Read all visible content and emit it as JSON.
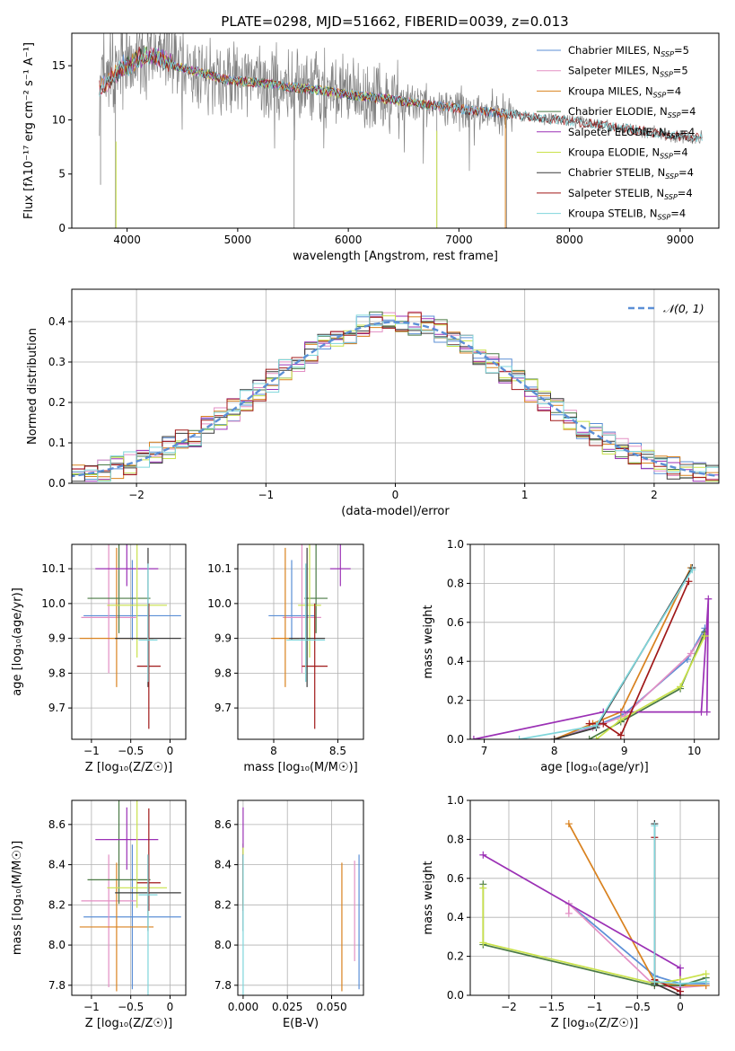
{
  "figure_title": "PLATE=0298, MJD=51662, FIBERID=0039, z=0.013",
  "colors": {
    "chabrier_miles": "#5b8fd6",
    "salpeter_miles": "#e38fc4",
    "kroupa_miles": "#d9821f",
    "chabrier_elodie": "#4a7a45",
    "salpeter_elodie": "#9b30b5",
    "kroupa_elodie": "#c9e24a",
    "chabrier_stelib": "#3a3a3a",
    "salpeter_stelib": "#a01818",
    "kroupa_stelib": "#7fd6db",
    "gaussian": "#5b8fd6",
    "observed_spectrum": "#808080"
  },
  "chart_data": [
    {
      "id": "spectrum",
      "type": "line",
      "xlabel": "wavelength [Angstrom, rest frame]",
      "ylabel": "Flux [fλ10⁻¹⁷ erg cm⁻² s⁻¹ A⁻¹]",
      "xlim": [
        3500,
        9350
      ],
      "ylim": [
        0,
        18
      ],
      "xticks": [
        4000,
        5000,
        6000,
        7000,
        8000,
        9000
      ],
      "yticks": [
        0,
        5,
        10,
        15
      ],
      "grid": false,
      "legend_position": "top-right",
      "series": [
        {
          "key": "chabrier_miles",
          "name": "Chabrier MILES, N",
          "sub": "SSP",
          "suffix": "=5",
          "range": [
            3750,
            7420
          ]
        },
        {
          "key": "salpeter_miles",
          "name": "Salpeter MILES, N",
          "sub": "SSP",
          "suffix": "=5",
          "range": [
            3750,
            7420
          ]
        },
        {
          "key": "kroupa_miles",
          "name": "Kroupa MILES, N",
          "sub": "SSP",
          "suffix": "=4",
          "range": [
            3750,
            7420
          ]
        },
        {
          "key": "chabrier_elodie",
          "name": "Chabrier ELODIE, N",
          "sub": "SSP",
          "suffix": "=4",
          "range": [
            3900,
            6800
          ]
        },
        {
          "key": "salpeter_elodie",
          "name": "Salpeter ELODIE, N",
          "sub": "SSP",
          "suffix": "=4",
          "range": [
            3900,
            6800
          ]
        },
        {
          "key": "kroupa_elodie",
          "name": "Kroupa ELODIE, N",
          "sub": "SSP",
          "suffix": "=4",
          "range": [
            3900,
            6800
          ]
        },
        {
          "key": "chabrier_stelib",
          "name": "Chabrier STELIB, N",
          "sub": "SSP",
          "suffix": "=4",
          "range": [
            3750,
            9200
          ]
        },
        {
          "key": "salpeter_stelib",
          "name": "Salpeter STELIB, N",
          "sub": "SSP",
          "suffix": "=4",
          "range": [
            3750,
            9200
          ]
        },
        {
          "key": "kroupa_stelib",
          "name": "Kroupa STELIB, N",
          "sub": "SSP",
          "suffix": "=4",
          "range": [
            3750,
            9200
          ]
        }
      ],
      "continuum": {
        "x": [
          3750,
          3850,
          3950,
          4050,
          4150,
          4300,
          4500,
          4700,
          4900,
          5100,
          5300,
          5500,
          5700,
          5900,
          6100,
          6300,
          6500,
          6700,
          6900,
          7100,
          7300,
          7500,
          7700,
          7900,
          8100,
          8300,
          8500,
          8700,
          8900,
          9100,
          9200
        ],
        "y": [
          12.5,
          13.5,
          14.5,
          15.0,
          15.6,
          15.4,
          14.8,
          14.3,
          13.7,
          13.5,
          13.3,
          13.0,
          12.8,
          12.5,
          12.2,
          12.0,
          11.7,
          11.4,
          11.2,
          10.9,
          10.7,
          10.5,
          10.2,
          10.0,
          9.8,
          9.5,
          9.2,
          8.9,
          8.6,
          8.4,
          8.3
        ]
      }
    },
    {
      "id": "residuals",
      "type": "bar",
      "xlabel": "(data-model)/error",
      "ylabel": "Normed distribution",
      "xlim": [
        -2.5,
        2.5
      ],
      "ylim": [
        0,
        0.48
      ],
      "xticks": [
        -2,
        -1,
        0,
        1,
        2
      ],
      "yticks": [
        0.0,
        0.1,
        0.2,
        0.3,
        0.4
      ],
      "grid": true,
      "legend_position": "top-right",
      "legend_label": "𝒩(0, 1)",
      "bin_width": 0.1,
      "bin_start": -2.6
    },
    {
      "id": "age_vs_Z",
      "type": "scatter",
      "xlabel": "Z [log₁₀(Z/Z☉)]",
      "ylabel": "age  [log₁₀(age/yr)]",
      "xlim": [
        -1.25,
        0.2
      ],
      "ylim": [
        9.61,
        10.17
      ],
      "xticks": [
        -1.0,
        -0.5,
        0.0
      ],
      "yticks": [
        9.7,
        9.8,
        9.9,
        10.0,
        10.1
      ],
      "grid": true,
      "points": [
        {
          "key": "chabrier_miles",
          "x": -0.48,
          "xerr": 0.62,
          "y": 9.965,
          "yerr": [
            0.07,
            0.16
          ]
        },
        {
          "key": "salpeter_miles",
          "x": -0.78,
          "xerr": 0.35,
          "y": 9.96,
          "yerr": [
            0.16,
            0.22
          ]
        },
        {
          "key": "kroupa_miles",
          "x": -0.68,
          "xerr": 0.47,
          "y": 9.9,
          "yerr": [
            0.14,
            0.26
          ]
        },
        {
          "key": "chabrier_elodie",
          "x": -0.65,
          "xerr": 0.4,
          "y": 10.015,
          "yerr": [
            0.1,
            0.37
          ]
        },
        {
          "key": "salpeter_elodie",
          "x": -0.55,
          "xerr": 0.4,
          "y": 10.1,
          "yerr": [
            0.05,
            0.45
          ]
        },
        {
          "key": "kroupa_elodie",
          "x": -0.42,
          "xerr": 0.38,
          "y": 9.995,
          "yerr": [
            0.15,
            0.35
          ]
        },
        {
          "key": "chabrier_stelib",
          "x": -0.28,
          "xerr": 0.42,
          "y": 9.9,
          "yerr": [
            0.14,
            0.26
          ]
        },
        {
          "key": "salpeter_stelib",
          "x": -0.27,
          "xerr": 0.15,
          "y": 9.82,
          "yerr": [
            0.18,
            0.18
          ]
        },
        {
          "key": "kroupa_stelib",
          "x": -0.28,
          "xerr": 0.12,
          "y": 9.895,
          "yerr": [
            0.12,
            0.22
          ]
        }
      ]
    },
    {
      "id": "age_vs_mass",
      "type": "scatter",
      "xlabel": "mass [log₁₀(M/M☉)]",
      "ylabel": "",
      "xlim": [
        7.72,
        8.7
      ],
      "ylim": [
        9.61,
        10.17
      ],
      "xticks": [
        8.0,
        8.5
      ],
      "yticks": [
        9.7,
        9.8,
        9.9,
        10.0,
        10.1
      ],
      "grid": true,
      "points": [
        {
          "key": "chabrier_miles",
          "x": 8.14,
          "xerr": 0.36,
          "y": 9.965,
          "yerr": [
            0.07,
            0.16
          ]
        },
        {
          "key": "salpeter_miles",
          "x": 8.22,
          "xerr": 0.3,
          "y": 9.96,
          "yerr": [
            0.16,
            0.22
          ]
        },
        {
          "key": "kroupa_miles",
          "x": 8.09,
          "xerr": 0.22,
          "y": 9.9,
          "yerr": [
            0.14,
            0.26
          ]
        },
        {
          "key": "chabrier_elodie",
          "x": 8.33,
          "xerr": 0.18,
          "y": 10.015,
          "yerr": [
            0.1,
            0.37
          ]
        },
        {
          "key": "salpeter_elodie",
          "x": 8.52,
          "xerr": 0.16,
          "y": 10.1,
          "yerr": [
            0.05,
            0.45
          ]
        },
        {
          "key": "kroupa_elodie",
          "x": 8.28,
          "xerr": 0.18,
          "y": 9.995,
          "yerr": [
            0.15,
            0.35
          ]
        },
        {
          "key": "chabrier_stelib",
          "x": 8.26,
          "xerr": 0.28,
          "y": 9.9,
          "yerr": [
            0.14,
            0.26
          ]
        },
        {
          "key": "salpeter_stelib",
          "x": 8.32,
          "xerr": 0.2,
          "y": 9.82,
          "yerr": [
            0.18,
            0.18
          ]
        },
        {
          "key": "kroupa_stelib",
          "x": 8.25,
          "xerr": 0.3,
          "y": 9.895,
          "yerr": [
            0.12,
            0.22
          ]
        }
      ]
    },
    {
      "id": "mass_weight_vs_age",
      "type": "line",
      "xlabel": "age  [log₁₀(age/yr)]",
      "ylabel": "mass weight",
      "xlim": [
        6.8,
        10.35
      ],
      "ylim": [
        0,
        1
      ],
      "xticks": [
        7,
        8,
        9,
        10
      ],
      "yticks": [
        0.0,
        0.2,
        0.4,
        0.6,
        0.8,
        1.0
      ],
      "grid": true,
      "series": [
        {
          "key": "chabrier_miles",
          "x": [
            8.0,
            8.6,
            9.0,
            9.9,
            10.15
          ],
          "y": [
            0.0,
            0.07,
            0.13,
            0.41,
            0.57
          ]
        },
        {
          "key": "salpeter_miles",
          "x": [
            8.0,
            8.55,
            9.0,
            9.95,
            10.15
          ],
          "y": [
            0.0,
            0.06,
            0.12,
            0.44,
            0.55
          ]
        },
        {
          "key": "kroupa_miles",
          "x": [
            8.0,
            8.55,
            8.95,
            9.95
          ],
          "y": [
            0.0,
            0.08,
            0.14,
            0.88
          ]
        },
        {
          "key": "chabrier_elodie",
          "x": [
            8.5,
            8.95,
            9.8,
            10.15
          ],
          "y": [
            0.0,
            0.09,
            0.26,
            0.55
          ]
        },
        {
          "key": "salpeter_elodie",
          "x": [
            6.85,
            8.7,
            10.1,
            10.2,
            10.18
          ],
          "y": [
            0.0,
            0.14,
            0.14,
            0.72,
            0.14
          ]
        },
        {
          "key": "kroupa_elodie",
          "x": [
            8.6,
            8.95,
            9.8,
            10.15
          ],
          "y": [
            0.0,
            0.1,
            0.27,
            0.53
          ]
        },
        {
          "key": "chabrier_stelib",
          "x": [
            8.0,
            8.6,
            9.97
          ],
          "y": [
            0.0,
            0.06,
            0.88
          ]
        },
        {
          "key": "salpeter_stelib",
          "x": [
            8.5,
            8.7,
            8.95,
            9.92
          ],
          "y": [
            0.08,
            0.08,
            0.02,
            0.81
          ]
        },
        {
          "key": "kroupa_stelib",
          "x": [
            7.5,
            8.6,
            9.97
          ],
          "y": [
            0.0,
            0.07,
            0.87
          ]
        }
      ]
    },
    {
      "id": "mass_vs_Z",
      "type": "scatter",
      "xlabel": "Z [log₁₀(Z/Z☉)]",
      "ylabel": "mass [log₁₀(M/M☉)]",
      "xlim": [
        -1.25,
        0.2
      ],
      "ylim": [
        7.75,
        8.72
      ],
      "xticks": [
        -1.0,
        -0.5,
        0.0
      ],
      "yticks": [
        7.8,
        8.0,
        8.2,
        8.4,
        8.6
      ],
      "grid": true,
      "points": [
        {
          "key": "chabrier_miles",
          "x": -0.48,
          "xerr": 0.62,
          "y": 8.14,
          "yerr": [
            0.36,
            0.36
          ]
        },
        {
          "key": "salpeter_miles",
          "x": -0.78,
          "xerr": 0.35,
          "y": 8.22,
          "yerr": [
            0.43,
            0.23
          ]
        },
        {
          "key": "kroupa_miles",
          "x": -0.68,
          "xerr": 0.47,
          "y": 8.09,
          "yerr": [
            0.32,
            0.32
          ]
        },
        {
          "key": "chabrier_elodie",
          "x": -0.65,
          "xerr": 0.4,
          "y": 8.325,
          "yerr": [
            0.12,
            0.53
          ]
        },
        {
          "key": "salpeter_elodie",
          "x": -0.55,
          "xerr": 0.4,
          "y": 8.525,
          "yerr": [
            0.15,
            0.16
          ]
        },
        {
          "key": "kroupa_elodie",
          "x": -0.42,
          "xerr": 0.38,
          "y": 8.285,
          "yerr": [
            0.1,
            0.5
          ]
        },
        {
          "key": "chabrier_stelib",
          "x": -0.28,
          "xerr": 0.42,
          "y": 8.26,
          "yerr": [
            0.19,
            0.19
          ]
        },
        {
          "key": "salpeter_stelib",
          "x": -0.27,
          "xerr": 0.15,
          "y": 8.31,
          "yerr": [
            0.14,
            0.37
          ]
        },
        {
          "key": "kroupa_stelib",
          "x": -0.28,
          "xerr": 0.12,
          "y": 8.25,
          "yerr": [
            0.5,
            0.2
          ]
        }
      ]
    },
    {
      "id": "mass_vs_ebv",
      "type": "scatter",
      "xlabel": "E(B-V)",
      "ylabel": "",
      "xlim": [
        -0.003,
        0.068
      ],
      "ylim": [
        7.75,
        8.72
      ],
      "xticks": [
        0.0,
        0.025,
        0.05
      ],
      "xtick_labels": [
        "0.000",
        "0.025",
        "0.050"
      ],
      "yticks": [
        7.8,
        8.0,
        8.2,
        8.4,
        8.6
      ],
      "grid": true,
      "points": [
        {
          "key": "chabrier_miles",
          "x": 0.0655,
          "y": 8.14,
          "yerr": [
            0.36,
            0.31
          ]
        },
        {
          "key": "salpeter_miles",
          "x": 0.063,
          "y": 8.22,
          "yerr": [
            0.3,
            0.2
          ]
        },
        {
          "key": "kroupa_miles",
          "x": 0.0558,
          "y": 8.09,
          "yerr": [
            0.32,
            0.32
          ]
        },
        {
          "key": "chabrier_elodie",
          "x": 0.0,
          "y": 8.325,
          "yerr": [
            0.12,
            0.18
          ]
        },
        {
          "key": "salpeter_elodie",
          "x": 0.0,
          "y": 8.525,
          "yerr": [
            0.15,
            0.16
          ]
        },
        {
          "key": "kroupa_elodie",
          "x": 0.0,
          "y": 8.285,
          "yerr": [
            0.1,
            0.2
          ]
        },
        {
          "key": "chabrier_stelib",
          "x": 0.0,
          "y": 8.26,
          "yerr": [
            0.19,
            0.19
          ]
        },
        {
          "key": "salpeter_stelib",
          "x": 0.0,
          "y": 8.31,
          "yerr": [
            0.14,
            0.14
          ]
        },
        {
          "key": "kroupa_stelib",
          "x": 0.0,
          "y": 8.25,
          "yerr": [
            0.5,
            0.2
          ]
        }
      ]
    },
    {
      "id": "mass_weight_vs_Z",
      "type": "line",
      "xlabel": "Z [log₁₀(Z/Z☉)]",
      "ylabel": "mass weight",
      "xlim": [
        -2.45,
        0.45
      ],
      "ylim": [
        0,
        1
      ],
      "xticks": [
        -2.0,
        -1.5,
        -1.0,
        -0.5,
        0.0
      ],
      "yticks": [
        0.0,
        0.2,
        0.4,
        0.6,
        0.8,
        1.0
      ],
      "grid": true,
      "series": [
        {
          "key": "chabrier_miles",
          "x": [
            -1.3,
            -0.3,
            0.0,
            0.3
          ],
          "y": [
            0.47,
            0.1,
            0.06,
            0.06
          ]
        },
        {
          "key": "salpeter_miles",
          "x": [
            -1.3,
            -1.3,
            -0.3,
            0.0,
            0.3
          ],
          "y": [
            0.42,
            0.47,
            0.05,
            0.04,
            0.05
          ]
        },
        {
          "key": "kroupa_miles",
          "x": [
            -1.3,
            -0.3,
            0.0,
            0.3
          ],
          "y": [
            0.88,
            0.07,
            0.05,
            0.05
          ]
        },
        {
          "key": "chabrier_elodie",
          "x": [
            -2.3,
            -2.3,
            -0.3,
            0.0,
            0.3
          ],
          "y": [
            0.57,
            0.26,
            0.05,
            0.05,
            0.09
          ]
        },
        {
          "key": "salpeter_elodie",
          "x": [
            -2.3,
            0.0,
            0.0
          ],
          "y": [
            0.72,
            0.14,
            0.0
          ]
        },
        {
          "key": "kroupa_elodie",
          "x": [
            -2.3,
            -2.3,
            -0.3,
            0.0,
            0.3
          ],
          "y": [
            0.55,
            0.27,
            0.06,
            0.08,
            0.11
          ]
        },
        {
          "key": "chabrier_stelib",
          "x": [
            -0.3,
            -0.3,
            0.0
          ],
          "y": [
            0.88,
            0.06,
            0.0
          ]
        },
        {
          "key": "salpeter_stelib",
          "x": [
            -0.3,
            -0.3,
            0.0
          ],
          "y": [
            0.81,
            0.08,
            0.02
          ]
        },
        {
          "key": "kroupa_stelib",
          "x": [
            -0.3,
            -0.3,
            0.0,
            0.3
          ],
          "y": [
            0.87,
            0.07,
            0.06,
            0.07
          ]
        }
      ]
    }
  ]
}
